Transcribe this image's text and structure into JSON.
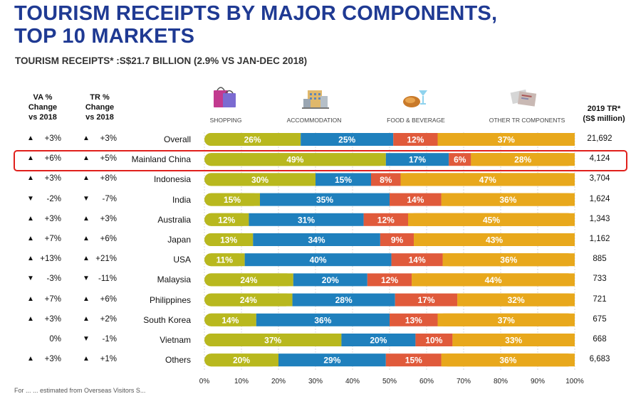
{
  "title_line1": "TOURISM RECEIPTS BY MAJOR COMPONENTS,",
  "title_line2": "TOP 10 MARKETS",
  "subtitle": "TOURISM RECEIPTS* :S$21.7 BILLION (2.9% VS JAN-DEC 2018)",
  "col_heads": {
    "va": [
      "VA %",
      "Change",
      "vs 2018"
    ],
    "tr": [
      "TR %",
      "Change",
      "vs 2018"
    ],
    "total": [
      "2019 TR*",
      "(S$ million)"
    ]
  },
  "footnote": "For ... ... estimated from Overseas Visitors S...",
  "chart_data": {
    "type": "bar",
    "stacked": true,
    "orientation": "horizontal",
    "series_names": [
      "SHOPPING",
      "ACCOMMODATION",
      "FOOD & BEVERAGE",
      "OTHER TR COMPONENTS"
    ],
    "colors": [
      "#b8b81e",
      "#1f80bd",
      "#e05a3b",
      "#e8a81c"
    ],
    "x_ticks": [
      "0%",
      "10%",
      "20%",
      "30%",
      "40%",
      "50%",
      "60%",
      "70%",
      "80%",
      "90%",
      "100%"
    ],
    "xlim": [
      0,
      100
    ],
    "highlighted": "Mainland China",
    "rows": [
      {
        "market": "Overall",
        "va_dir": "up",
        "va": "+3%",
        "tr_dir": "up",
        "tr": "+3%",
        "values": [
          26,
          25,
          12,
          37
        ],
        "total": "21,692"
      },
      {
        "market": "Mainland China",
        "va_dir": "up",
        "va": "+6%",
        "tr_dir": "up",
        "tr": "+5%",
        "values": [
          49,
          17,
          6,
          28
        ],
        "total": "4,124"
      },
      {
        "market": "Indonesia",
        "va_dir": "up",
        "va": "+3%",
        "tr_dir": "up",
        "tr": "+8%",
        "values": [
          30,
          15,
          8,
          47
        ],
        "total": "3,704"
      },
      {
        "market": "India",
        "va_dir": "down",
        "va": "-2%",
        "tr_dir": "down",
        "tr": "-7%",
        "values": [
          15,
          35,
          14,
          36
        ],
        "total": "1,624"
      },
      {
        "market": "Australia",
        "va_dir": "up",
        "va": "+3%",
        "tr_dir": "up",
        "tr": "+3%",
        "values": [
          12,
          31,
          12,
          45
        ],
        "total": "1,343"
      },
      {
        "market": "Japan",
        "va_dir": "up",
        "va": "+7%",
        "tr_dir": "up",
        "tr": "+6%",
        "values": [
          13,
          34,
          9,
          43
        ],
        "total": "1,162"
      },
      {
        "market": "USA",
        "va_dir": "up",
        "va": "+13%",
        "tr_dir": "up",
        "tr": "+21%",
        "values": [
          11,
          40,
          14,
          36
        ],
        "total": "885"
      },
      {
        "market": "Malaysia",
        "va_dir": "down",
        "va": "-3%",
        "tr_dir": "down",
        "tr": "-11%",
        "values": [
          24,
          20,
          12,
          44
        ],
        "total": "733"
      },
      {
        "market": "Philippines",
        "va_dir": "up",
        "va": "+7%",
        "tr_dir": "up",
        "tr": "+6%",
        "values": [
          24,
          28,
          17,
          32
        ],
        "total": "721"
      },
      {
        "market": "South Korea",
        "va_dir": "up",
        "va": "+3%",
        "tr_dir": "up",
        "tr": "+2%",
        "values": [
          14,
          36,
          13,
          37
        ],
        "total": "675"
      },
      {
        "market": "Vietnam",
        "va_dir": "none",
        "va": "0%",
        "tr_dir": "down",
        "tr": "-1%",
        "values": [
          37,
          20,
          10,
          33
        ],
        "total": "668"
      },
      {
        "market": "Others",
        "va_dir": "up",
        "va": "+3%",
        "tr_dir": "up",
        "tr": "+1%",
        "values": [
          20,
          29,
          15,
          36
        ],
        "total": "6,683"
      }
    ]
  }
}
